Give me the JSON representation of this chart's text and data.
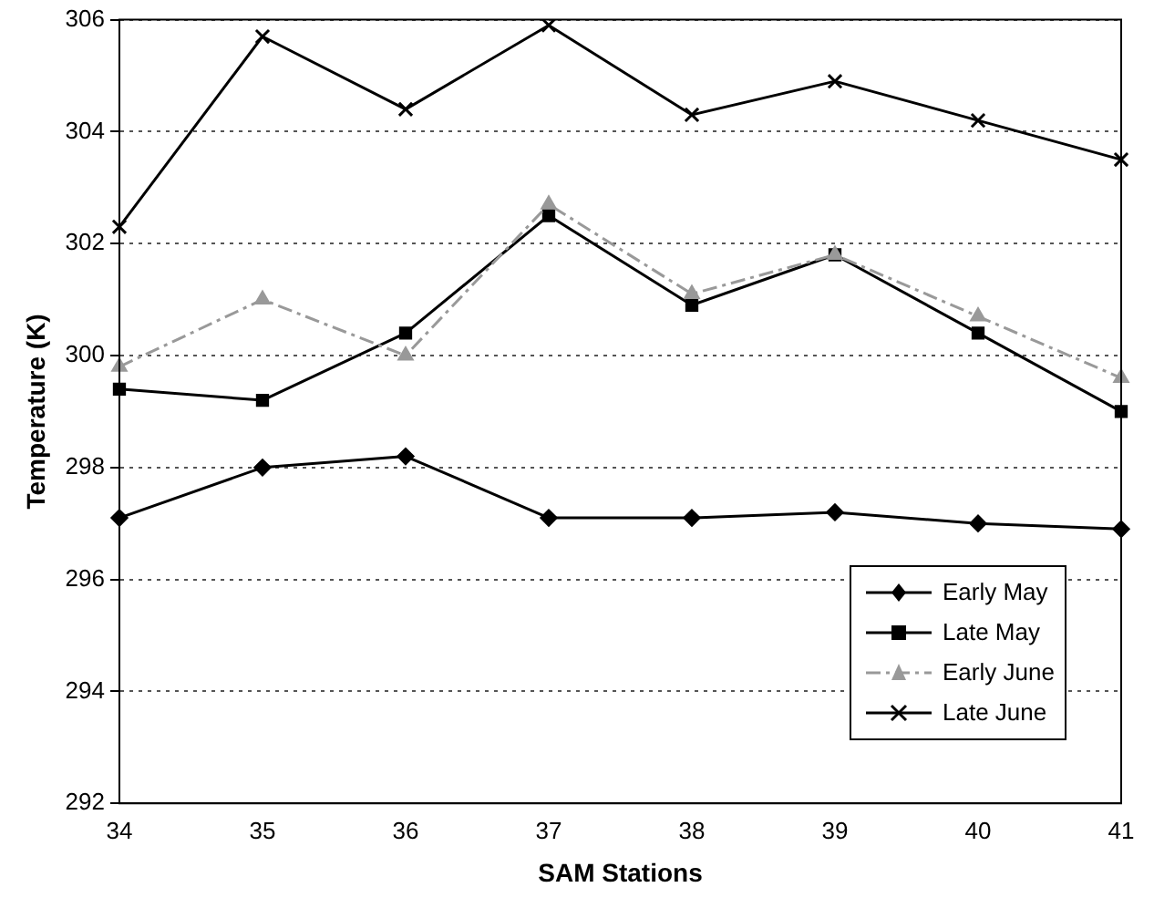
{
  "chart_data": {
    "type": "line",
    "xlabel": "SAM Stations",
    "ylabel": "Temperature (K)",
    "categories": [
      "34",
      "35",
      "36",
      "37",
      "38",
      "39",
      "40",
      "41"
    ],
    "series": [
      {
        "name": "Early May",
        "color": "#000000",
        "marker": "diamond",
        "line_style": "solid",
        "values": [
          297.1,
          298.0,
          298.2,
          297.1,
          297.1,
          297.2,
          297.0,
          296.9
        ]
      },
      {
        "name": "Late May",
        "color": "#000000",
        "marker": "square",
        "line_style": "solid",
        "values": [
          299.4,
          299.2,
          300.4,
          302.5,
          300.9,
          301.8,
          300.4,
          299.0
        ]
      },
      {
        "name": "Early June",
        "color": "#999999",
        "marker": "triangle",
        "line_style": "dashed",
        "values": [
          299.8,
          301.0,
          300.0,
          302.7,
          301.1,
          301.8,
          300.7,
          299.6
        ]
      },
      {
        "name": "Late June",
        "color": "#000000",
        "marker": "cross",
        "line_style": "solid",
        "values": [
          302.3,
          305.7,
          304.4,
          305.9,
          304.3,
          304.9,
          304.2,
          303.5
        ]
      }
    ],
    "ylim": [
      292,
      306
    ],
    "yticks": [
      292,
      294,
      296,
      298,
      300,
      302,
      304,
      306
    ],
    "grid": "y",
    "legend": "bottom right"
  }
}
